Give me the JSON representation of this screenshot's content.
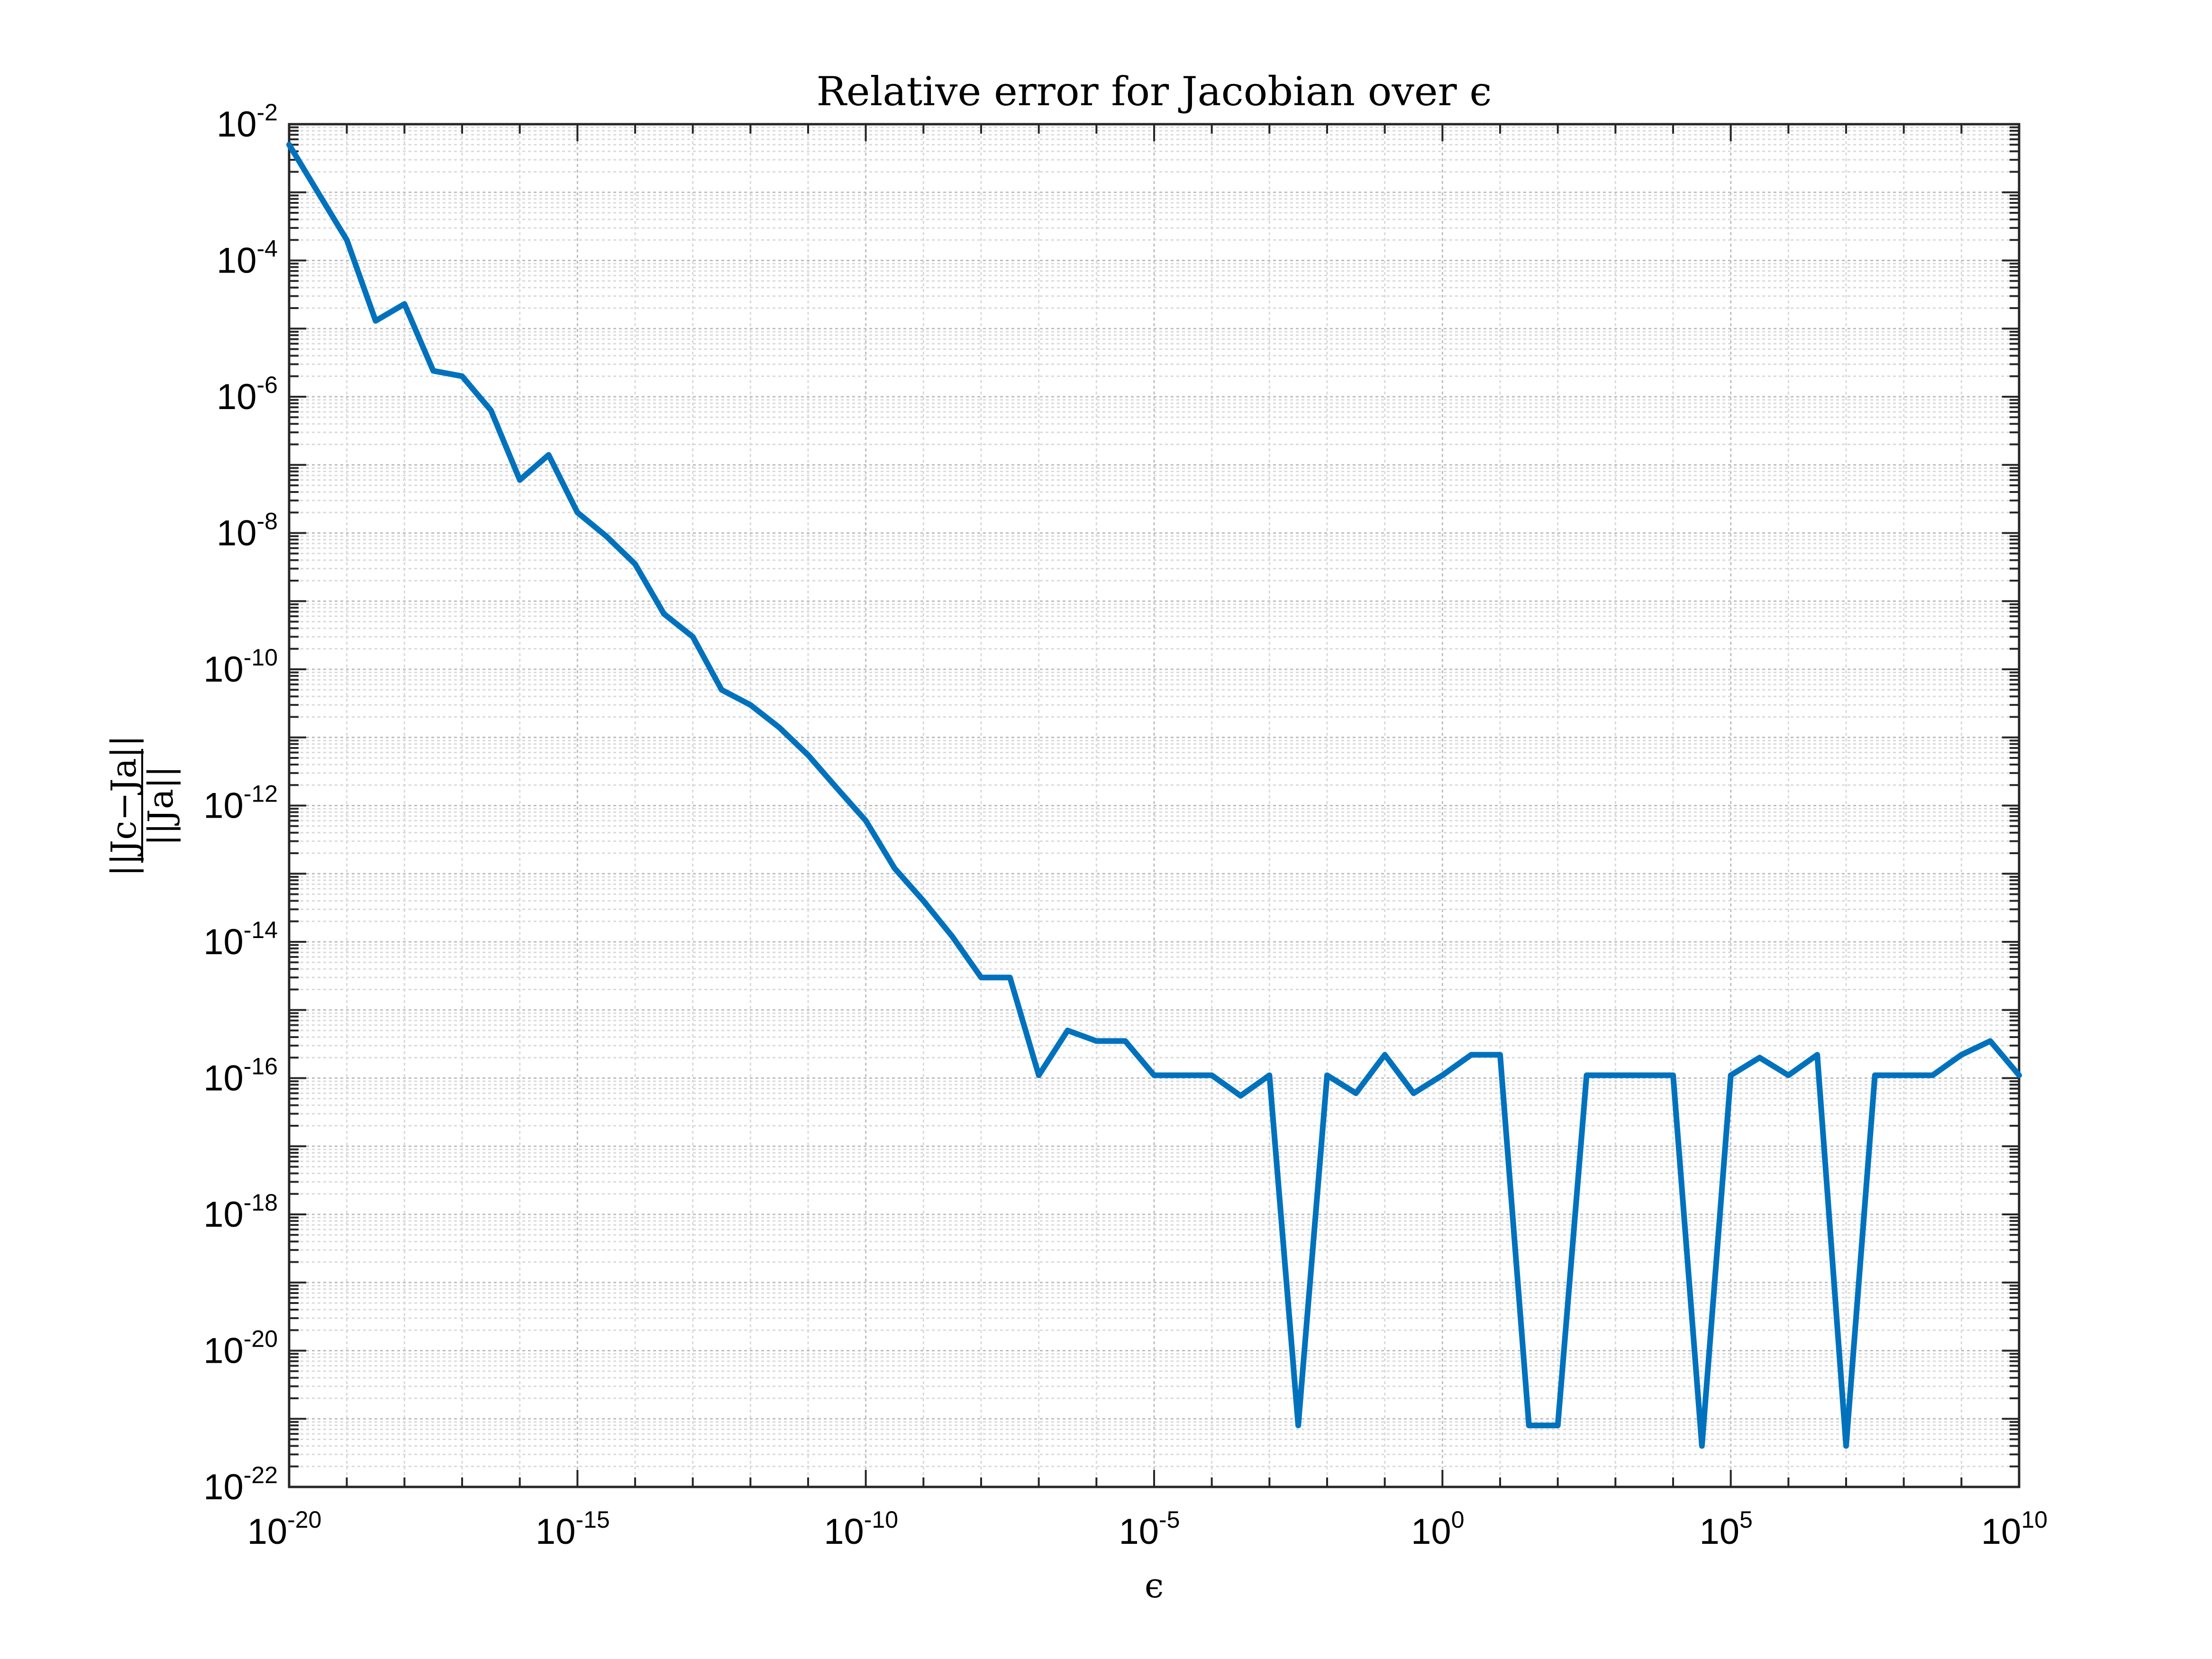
{
  "chart_data": {
    "type": "line",
    "title": "Relative error for Jacobian over ϵ",
    "xlabel": "ϵ",
    "ylabel": {
      "numerator": "||Jc−Ja||",
      "denominator": "||Ja||"
    },
    "xscale": "log",
    "yscale": "log",
    "xlim": [
      1e-20,
      10000000000.0
    ],
    "ylim": [
      1e-22,
      0.01
    ],
    "grid": true,
    "legend": "none",
    "x_ticks": [
      {
        "base": "10",
        "exp": "-20"
      },
      {
        "base": "10",
        "exp": "-15"
      },
      {
        "base": "10",
        "exp": "-10"
      },
      {
        "base": "10",
        "exp": "-5"
      },
      {
        "base": "10",
        "exp": "0"
      },
      {
        "base": "10",
        "exp": "5"
      },
      {
        "base": "10",
        "exp": "10"
      }
    ],
    "y_ticks": [
      {
        "base": "10",
        "exp": "-2"
      },
      {
        "base": "10",
        "exp": "-4"
      },
      {
        "base": "10",
        "exp": "-6"
      },
      {
        "base": "10",
        "exp": "-8"
      },
      {
        "base": "10",
        "exp": "-10"
      },
      {
        "base": "10",
        "exp": "-12"
      },
      {
        "base": "10",
        "exp": "-14"
      },
      {
        "base": "10",
        "exp": "-16"
      },
      {
        "base": "10",
        "exp": "-18"
      },
      {
        "base": "10",
        "exp": "-20"
      },
      {
        "base": "10",
        "exp": "-22"
      }
    ],
    "series": [
      {
        "color": "#0072BD",
        "x": [
          1e-20,
          3.16e-20,
          1e-19,
          3.16e-19,
          1e-18,
          3.16e-18,
          1e-17,
          3.16e-17,
          1e-16,
          3.16e-16,
          1e-15,
          3.16e-15,
          1e-14,
          3.16e-14,
          1e-13,
          3.16e-13,
          1e-12,
          3.16e-12,
          1e-11,
          3.16e-11,
          1e-10,
          3.16e-10,
          1e-09,
          3.16e-09,
          1e-08,
          3.16e-08,
          1e-07,
          3.16e-07,
          1e-06,
          3.16e-06,
          1e-05,
          3.16e-05,
          0.0001,
          0.000316,
          0.001,
          0.00316,
          0.01,
          0.0316,
          0.1,
          0.316,
          1,
          3.16,
          10,
          31.6,
          100,
          316,
          1000,
          3160,
          10000.0,
          31600.0,
          100000.0,
          316000.0,
          1000000.0,
          3160000.0,
          10000000.0,
          31600000.0,
          100000000.0,
          316000000.0,
          1000000000.0,
          3160000000.0,
          10000000000.0
        ],
        "y": [
          0.005,
          0.001,
          0.0002,
          1.3e-05,
          2.3e-05,
          2.4e-06,
          2e-06,
          6.3e-07,
          6e-08,
          1.4e-07,
          2e-08,
          9e-09,
          3.5e-09,
          6.5e-10,
          3e-10,
          5e-11,
          3e-11,
          1.4e-11,
          5.5e-12,
          1.8e-12,
          6e-13,
          1.2e-13,
          4e-14,
          1.2e-14,
          3e-15,
          3e-15,
          1.1e-16,
          5e-16,
          3.5e-16,
          3.5e-16,
          1.1e-16,
          1.1e-16,
          1.1e-16,
          5.5e-17,
          1.1e-16,
          8e-22,
          1.1e-16,
          6e-17,
          2.2e-16,
          6e-17,
          1.1e-16,
          2.2e-16,
          2.2e-16,
          8e-22,
          8e-22,
          1.1e-16,
          1.1e-16,
          1.1e-16,
          1.1e-16,
          4e-22,
          1.1e-16,
          2e-16,
          1.1e-16,
          2.2e-16,
          4e-22,
          1.1e-16,
          1.1e-16,
          1.1e-16,
          2.2e-16,
          3.5e-16,
          1.1e-16
        ]
      }
    ]
  }
}
